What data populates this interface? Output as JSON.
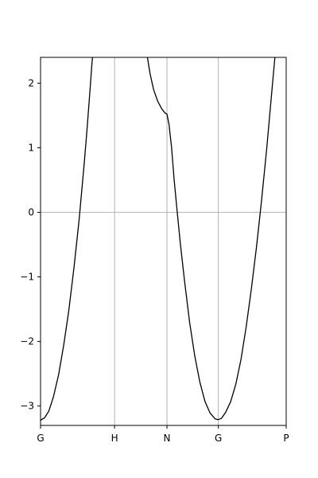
{
  "chart_data": {
    "type": "line",
    "title": "",
    "xlabel": "",
    "ylabel": "",
    "xlim": [
      0,
      4.78
    ],
    "ylim": [
      -3.3,
      2.4
    ],
    "grid": true,
    "vlines_x": [
      1.44,
      2.46,
      3.46
    ],
    "hlines_y": [
      0
    ],
    "x_ticks": [
      {
        "label": "G",
        "value": 0
      },
      {
        "label": "H",
        "value": 1.44
      },
      {
        "label": "N",
        "value": 2.46
      },
      {
        "label": "G",
        "value": 3.46
      },
      {
        "label": "P",
        "value": 4.78
      }
    ],
    "y_ticks": [
      {
        "label": "−3",
        "value": -3
      },
      {
        "label": "−2",
        "value": -2
      },
      {
        "label": "−1",
        "value": -1
      },
      {
        "label": "0",
        "value": 0
      },
      {
        "label": "1",
        "value": 1
      },
      {
        "label": "2",
        "value": 2
      }
    ],
    "line_color": "#000000",
    "series": [
      {
        "x": [
          0.0,
          0.08,
          0.16,
          0.25,
          0.35,
          0.45,
          0.55,
          0.65,
          0.75,
          0.85,
          0.9,
          0.95,
          1.0,
          1.01
        ],
        "y": [
          -3.22,
          -3.18,
          -3.08,
          -2.86,
          -2.52,
          -2.06,
          -1.52,
          -0.86,
          -0.12,
          0.76,
          1.24,
          1.76,
          2.3,
          2.4
        ]
      },
      {
        "x": [
          2.08,
          2.13,
          2.2,
          2.28,
          2.36,
          2.42,
          2.46,
          2.5,
          2.55,
          2.6,
          2.66,
          2.72,
          2.8,
          2.9,
          3.0,
          3.1,
          3.2,
          3.3,
          3.4,
          3.46,
          3.52,
          3.6,
          3.7,
          3.8,
          3.9,
          4.0,
          4.1,
          4.2,
          4.3,
          4.4,
          4.5,
          4.56
        ],
        "y": [
          2.4,
          2.15,
          1.9,
          1.72,
          1.6,
          1.54,
          1.52,
          1.36,
          1.0,
          0.5,
          0.0,
          -0.48,
          -1.05,
          -1.7,
          -2.22,
          -2.63,
          -2.93,
          -3.11,
          -3.2,
          -3.21,
          -3.19,
          -3.1,
          -2.93,
          -2.66,
          -2.28,
          -1.78,
          -1.2,
          -0.55,
          0.18,
          0.98,
          1.87,
          2.4
        ]
      }
    ]
  }
}
